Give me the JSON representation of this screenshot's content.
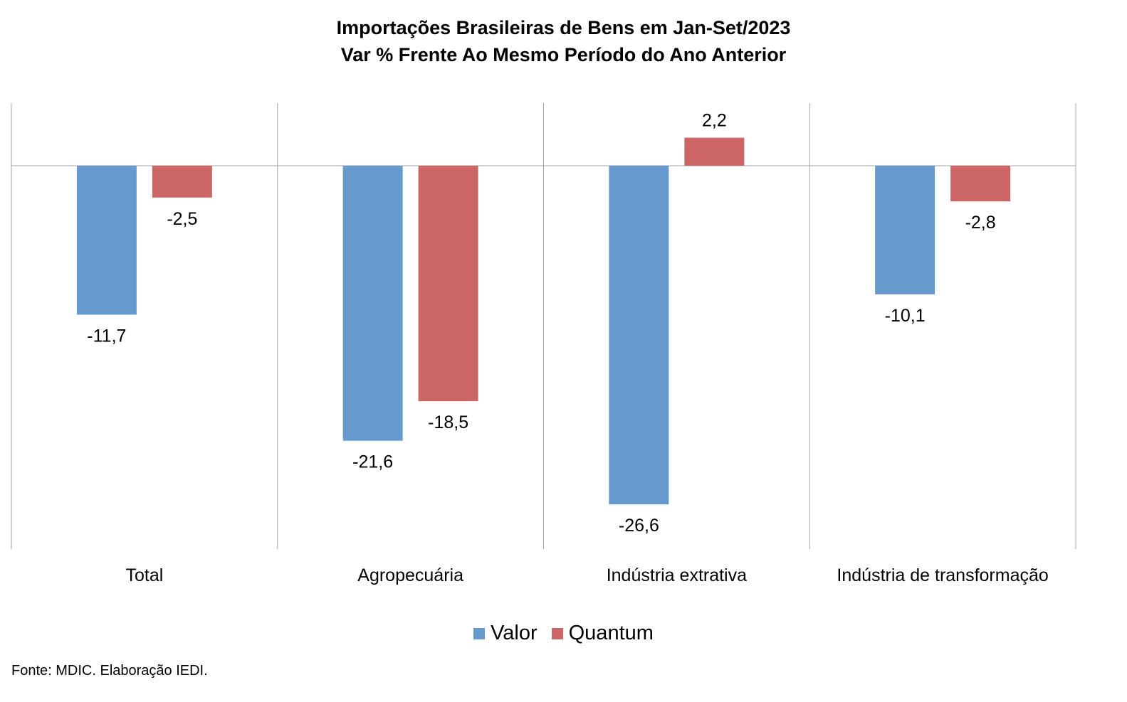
{
  "chart_data": {
    "type": "bar",
    "title": "Importações Brasileiras de Bens em Jan-Set/2023",
    "subtitle": "Var % Frente Ao Mesmo Período do Ano Anterior",
    "categories": [
      "Total",
      "Agropecuária",
      "Indústria extrativa",
      "Indústria de transformação"
    ],
    "series": [
      {
        "name": "Valor",
        "color": "#6699CC",
        "values": [
          -11.7,
          -21.6,
          -26.6,
          -10.1
        ],
        "labels": [
          "-11,7",
          "-21,6",
          "-26,6",
          "-10,1"
        ]
      },
      {
        "name": "Quantum",
        "color": "#CC6666",
        "values": [
          -2.5,
          -18.5,
          2.2,
          -2.8
        ],
        "labels": [
          "-2,5",
          "-18,5",
          "2,2",
          "-2,8"
        ]
      }
    ],
    "xlabel": "",
    "ylabel": "",
    "ylim": [
      -30,
      5
    ],
    "grid": false,
    "legend_position": "bottom",
    "data_labels": true
  },
  "source_note": "Fonte: MDIC. Elaboração IEDI."
}
